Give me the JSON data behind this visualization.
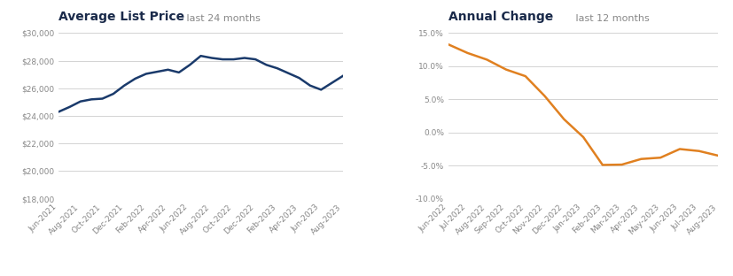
{
  "left_title": "Average List Price",
  "left_subtitle": " last 24 months",
  "right_title": "Annual Change",
  "right_subtitle": " last 12 months",
  "left_x_labels": [
    "Jun-2021",
    "Aug-2021",
    "Oct-2021",
    "Dec-2021",
    "Feb-2022",
    "Apr-2022",
    "Jun-2022",
    "Aug-2022",
    "Oct-2022",
    "Dec-2022",
    "Feb-2023",
    "Apr-2023",
    "Jun-2023",
    "Aug-2023"
  ],
  "right_x_labels": [
    "Jun-2022",
    "Jul-2022",
    "Aug-2022",
    "Sep-2022",
    "Oct-2022",
    "Nov-2022",
    "Dec-2022",
    "Jan-2023",
    "Feb-2023",
    "Mar-2023",
    "Apr-2023",
    "May-2023",
    "Jun-2023",
    "Jul-2023",
    "Aug-2023"
  ],
  "left_color": "#1a3a6b",
  "right_color": "#e08020",
  "left_ylim": [
    18000,
    30000
  ],
  "right_ylim": [
    -10.0,
    15.0
  ],
  "left_yticks": [
    18000,
    20000,
    22000,
    24000,
    26000,
    28000,
    30000
  ],
  "right_yticks": [
    -10.0,
    -5.0,
    0.0,
    5.0,
    10.0,
    15.0
  ],
  "bg_color": "#ffffff",
  "grid_color": "#cccccc",
  "title_fontsize": 10,
  "subtitle_fontsize": 8,
  "tick_fontsize": 6.5,
  "line_width": 1.8,
  "title_color": "#1a2a4a",
  "tick_color": "#888888"
}
